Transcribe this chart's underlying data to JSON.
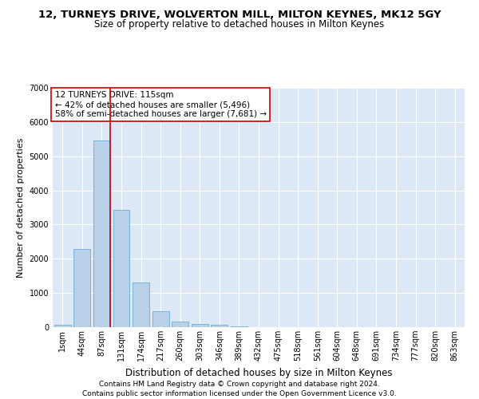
{
  "title": "12, TURNEYS DRIVE, WOLVERTON MILL, MILTON KEYNES, MK12 5GY",
  "subtitle": "Size of property relative to detached houses in Milton Keynes",
  "xlabel": "Distribution of detached houses by size in Milton Keynes",
  "ylabel": "Number of detached properties",
  "bar_color": "#b8d0e8",
  "bar_edge_color": "#6aaed6",
  "bg_color": "#dce8f5",
  "grid_color": "#ffffff",
  "fig_bg_color": "#ffffff",
  "categories": [
    "1sqm",
    "44sqm",
    "87sqm",
    "131sqm",
    "174sqm",
    "217sqm",
    "260sqm",
    "303sqm",
    "346sqm",
    "389sqm",
    "432sqm",
    "475sqm",
    "518sqm",
    "561sqm",
    "604sqm",
    "648sqm",
    "691sqm",
    "734sqm",
    "777sqm",
    "820sqm",
    "863sqm"
  ],
  "values": [
    75,
    2280,
    5470,
    3440,
    1310,
    460,
    155,
    100,
    65,
    35,
    0,
    0,
    0,
    0,
    0,
    0,
    0,
    0,
    0,
    0,
    0
  ],
  "vline_x": 2.425,
  "vline_color": "#cc0000",
  "annotation_text": "12 TURNEYS DRIVE: 115sqm\n← 42% of detached houses are smaller (5,496)\n58% of semi-detached houses are larger (7,681) →",
  "annotation_box_color": "#ffffff",
  "annotation_box_edge": "#cc0000",
  "ylim": [
    0,
    7000
  ],
  "yticks": [
    0,
    1000,
    2000,
    3000,
    4000,
    5000,
    6000,
    7000
  ],
  "footer1": "Contains HM Land Registry data © Crown copyright and database right 2024.",
  "footer2": "Contains public sector information licensed under the Open Government Licence v3.0.",
  "title_fontsize": 9.5,
  "subtitle_fontsize": 8.5,
  "xlabel_fontsize": 8.5,
  "ylabel_fontsize": 8,
  "tick_fontsize": 7,
  "annotation_fontsize": 7.5,
  "footer_fontsize": 6.5
}
